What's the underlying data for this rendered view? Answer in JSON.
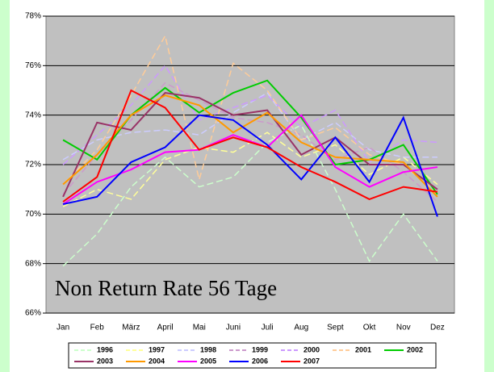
{
  "chart_data": {
    "type": "line",
    "annotation": "Non Return Rate 56 Tage",
    "categories": [
      "Jan",
      "Feb",
      "März",
      "April",
      "Mai",
      "Juni",
      "Juli",
      "Aug",
      "Sept",
      "Okt",
      "Nov",
      "Dez"
    ],
    "ylim": [
      66,
      78
    ],
    "yticks": [
      {
        "value": 66,
        "label": "66%"
      },
      {
        "value": 68,
        "label": "68%"
      },
      {
        "value": 70,
        "label": "70%"
      },
      {
        "value": 72,
        "label": "72%"
      },
      {
        "value": 74,
        "label": "74%"
      },
      {
        "value": 76,
        "label": "76%"
      },
      {
        "value": 78,
        "label": "78%"
      }
    ],
    "grid": true,
    "legend": "bottom",
    "series": [
      {
        "name": "1996",
        "color": "#ccffcc",
        "style": "dashed",
        "values": [
          67.9,
          69.2,
          71.1,
          72.3,
          71.1,
          71.5,
          72.9,
          73.6,
          71.0,
          68.1,
          70.0,
          68.1
        ]
      },
      {
        "name": "1997",
        "color": "#ffff99",
        "style": "dashed",
        "values": [
          70.3,
          71.0,
          70.6,
          72.2,
          72.7,
          72.5,
          73.3,
          72.3,
          72.8,
          71.6,
          72.3,
          71.2
        ]
      },
      {
        "name": "1998",
        "color": "#ccccff",
        "style": "dashed",
        "values": [
          72.2,
          73.0,
          73.3,
          73.4,
          73.2,
          74.1,
          74.9,
          73.0,
          73.7,
          72.6,
          72.3,
          72.3
        ]
      },
      {
        "name": "1999",
        "color": "#cc99cc",
        "style": "dashed",
        "values": [
          70.8,
          72.4,
          73.8,
          75.3,
          74.6,
          73.9,
          73.7,
          73.2,
          72.2,
          72.7,
          71.7,
          70.5
        ]
      },
      {
        "name": "2000",
        "color": "#cc99ff",
        "style": "dashed",
        "values": [
          72.0,
          73.2,
          74.4,
          76.0,
          73.8,
          74.3,
          74.8,
          73.5,
          74.2,
          72.1,
          73.0,
          72.9
        ]
      },
      {
        "name": "2001",
        "color": "#ffcc99",
        "style": "dashed",
        "values": [
          71.2,
          72.6,
          74.8,
          77.2,
          71.4,
          76.1,
          75.0,
          73.0,
          73.5,
          72.4,
          72.0,
          70.8
        ]
      },
      {
        "name": "2002",
        "color": "#00cc00",
        "style": "solid",
        "values": [
          73.0,
          72.2,
          74.0,
          75.1,
          74.1,
          74.9,
          75.4,
          73.9,
          72.0,
          72.2,
          72.8,
          70.8
        ]
      },
      {
        "name": "2003",
        "color": "#993366",
        "style": "solid",
        "values": [
          70.7,
          73.7,
          73.4,
          74.9,
          74.7,
          74.0,
          74.2,
          72.4,
          73.1,
          72.0,
          72.0,
          71.0
        ]
      },
      {
        "name": "2004",
        "color": "#ff9900",
        "style": "solid",
        "values": [
          71.2,
          72.4,
          74.0,
          74.8,
          74.4,
          73.3,
          74.1,
          72.9,
          72.3,
          72.2,
          72.1,
          70.7
        ]
      },
      {
        "name": "2005",
        "color": "#ff00ff",
        "style": "solid",
        "values": [
          70.4,
          71.3,
          71.8,
          72.5,
          72.6,
          73.2,
          72.7,
          74.0,
          71.9,
          71.1,
          71.7,
          71.9
        ]
      },
      {
        "name": "2006",
        "color": "#0000ff",
        "style": "solid",
        "values": [
          70.4,
          70.7,
          72.1,
          72.7,
          74.0,
          73.8,
          72.8,
          71.4,
          73.1,
          71.3,
          73.9,
          69.9
        ]
      },
      {
        "name": "2007",
        "color": "#ff0000",
        "style": "solid",
        "values": [
          70.5,
          71.5,
          75.0,
          74.3,
          72.6,
          73.1,
          72.7,
          71.9,
          71.3,
          70.6,
          71.1,
          70.9
        ]
      }
    ]
  }
}
